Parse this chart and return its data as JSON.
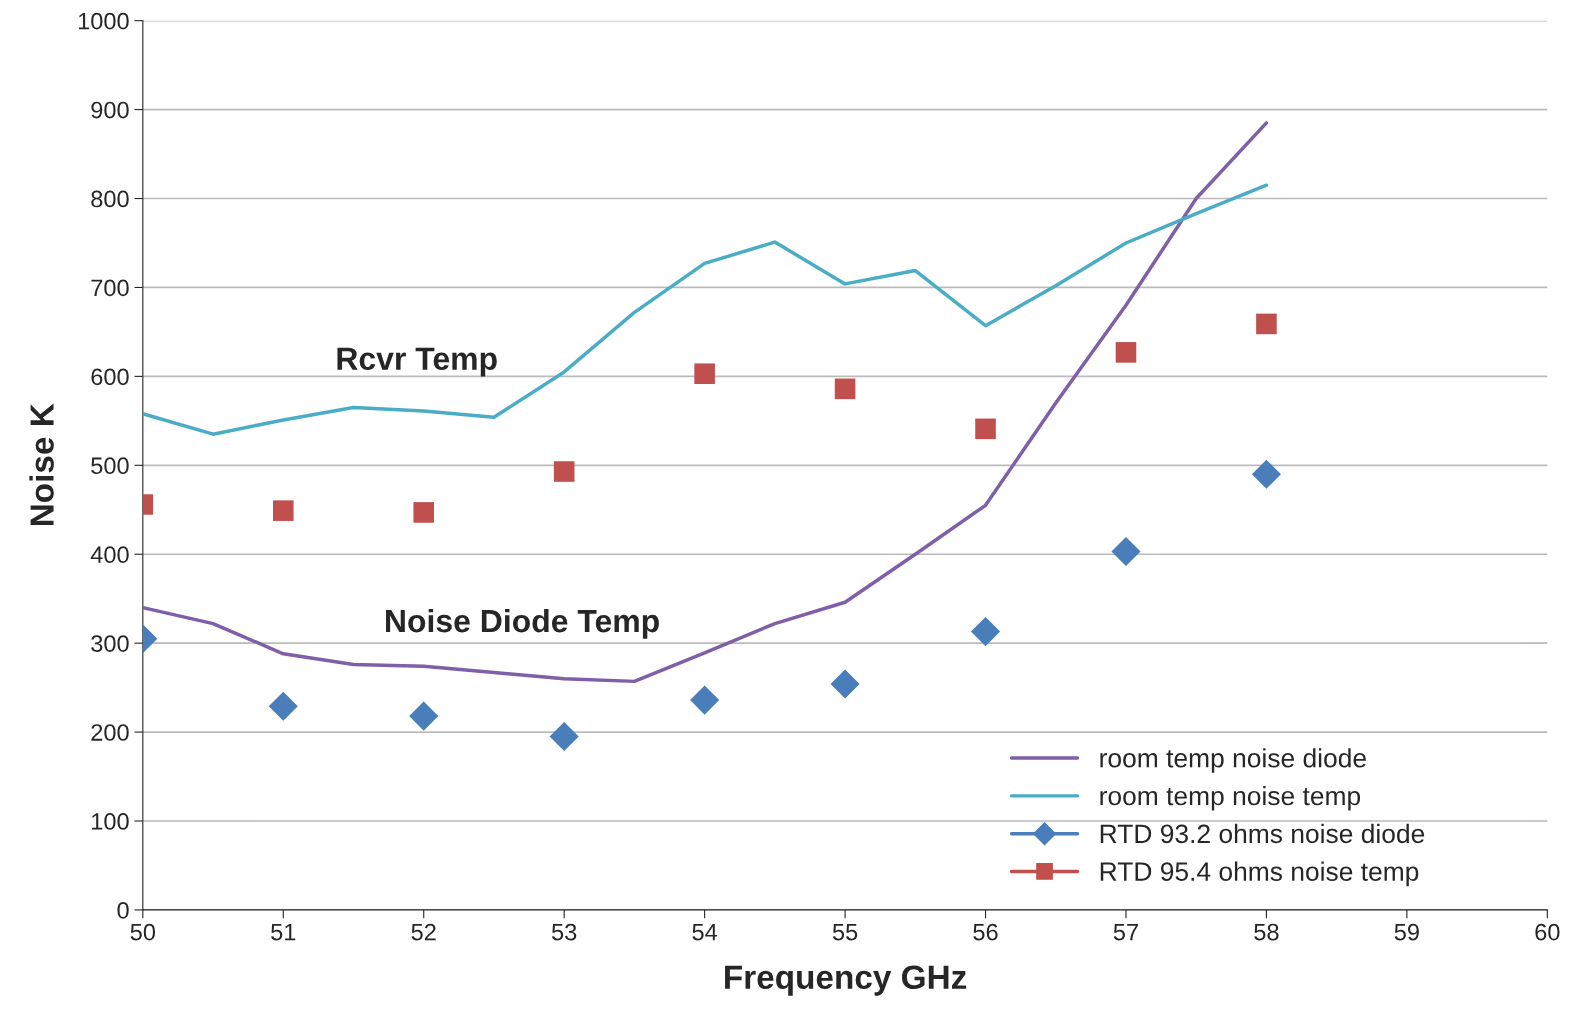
{
  "chart_data": {
    "type": "line",
    "xlabel": "Frequency GHz",
    "ylabel": "Noise K",
    "xlim": [
      50,
      60
    ],
    "xticks": [
      50,
      51,
      52,
      53,
      54,
      55,
      56,
      57,
      58,
      59,
      60
    ],
    "ylim": [
      0,
      1000
    ],
    "yticks": [
      0,
      100,
      200,
      300,
      400,
      500,
      600,
      700,
      800,
      900,
      1000
    ],
    "grid": "y",
    "legend": "bottom right",
    "series": [
      {
        "name": "room temp noise diode",
        "color": "#7f5fa8",
        "x": [
          50,
          50.5,
          51,
          51.5,
          52,
          52.5,
          53,
          53.5,
          54,
          54.5,
          55,
          55.5,
          56,
          56.5,
          57,
          57.5,
          58
        ],
        "values": [
          340,
          322,
          288,
          276,
          274,
          267,
          260,
          257,
          289,
          322,
          346,
          400,
          455,
          570,
          680,
          800,
          885
        ]
      },
      {
        "name": "room temp noise temp",
        "color": "#4bacc6",
        "x": [
          50,
          50.5,
          51,
          51.5,
          52,
          52.5,
          53,
          53.5,
          54,
          54.5,
          55,
          55.5,
          56,
          56.5,
          57,
          57.5,
          58
        ],
        "values": [
          558,
          535,
          551,
          565,
          561,
          554,
          605,
          672,
          727,
          751,
          704,
          719,
          657,
          702,
          750,
          783,
          815
        ]
      },
      {
        "name": "RTD 93.2 ohms noise diode",
        "type": "scatter",
        "marker": "diamond",
        "color": "#4a7ebb",
        "x": [
          50,
          51,
          52,
          53,
          54,
          55,
          56,
          57,
          58
        ],
        "values": [
          305,
          229,
          218,
          195,
          236,
          254,
          313,
          403,
          490
        ]
      },
      {
        "name": "RTD 95.4 ohms noise temp",
        "type": "scatter",
        "marker": "square",
        "color": "#c0504d",
        "x": [
          50,
          51,
          52,
          53,
          54,
          55,
          56,
          57,
          58
        ],
        "values": [
          456,
          449,
          447,
          493,
          603,
          586,
          541,
          627,
          659
        ]
      }
    ],
    "annotations": [
      "Rcvr Temp",
      "Noise Diode Temp"
    ]
  }
}
